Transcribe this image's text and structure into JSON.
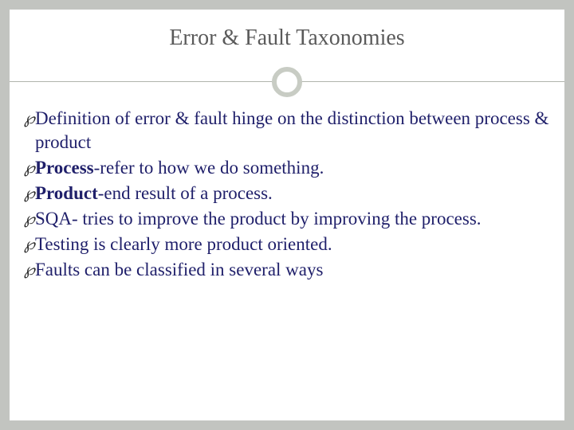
{
  "slide": {
    "title": "Error & Fault Taxonomies",
    "title_color": "#5a5a5a",
    "title_fontsize": 28,
    "background_color": "#ffffff",
    "outer_background": "#c2c4c0",
    "divider_color": "#b0b4ac",
    "circle_border_color": "#c8ccc4",
    "bullet_glyph": "℘",
    "bullet_color": "#2a2a2a",
    "text_color": "#1f1f6a",
    "text_fontsize": 23,
    "bullets": [
      {
        "html": "Definition of error & fault hinge on the distinction between process & product"
      },
      {
        "html": "<b>Process</b>-refer to how we do something."
      },
      {
        "html": "<b>Product</b>-end result of a process."
      },
      {
        "html": "SQA- tries to improve the product by improving the process."
      },
      {
        "html": "Testing is clearly more product oriented."
      },
      {
        "html": "Faults can be classified in several ways"
      }
    ]
  }
}
